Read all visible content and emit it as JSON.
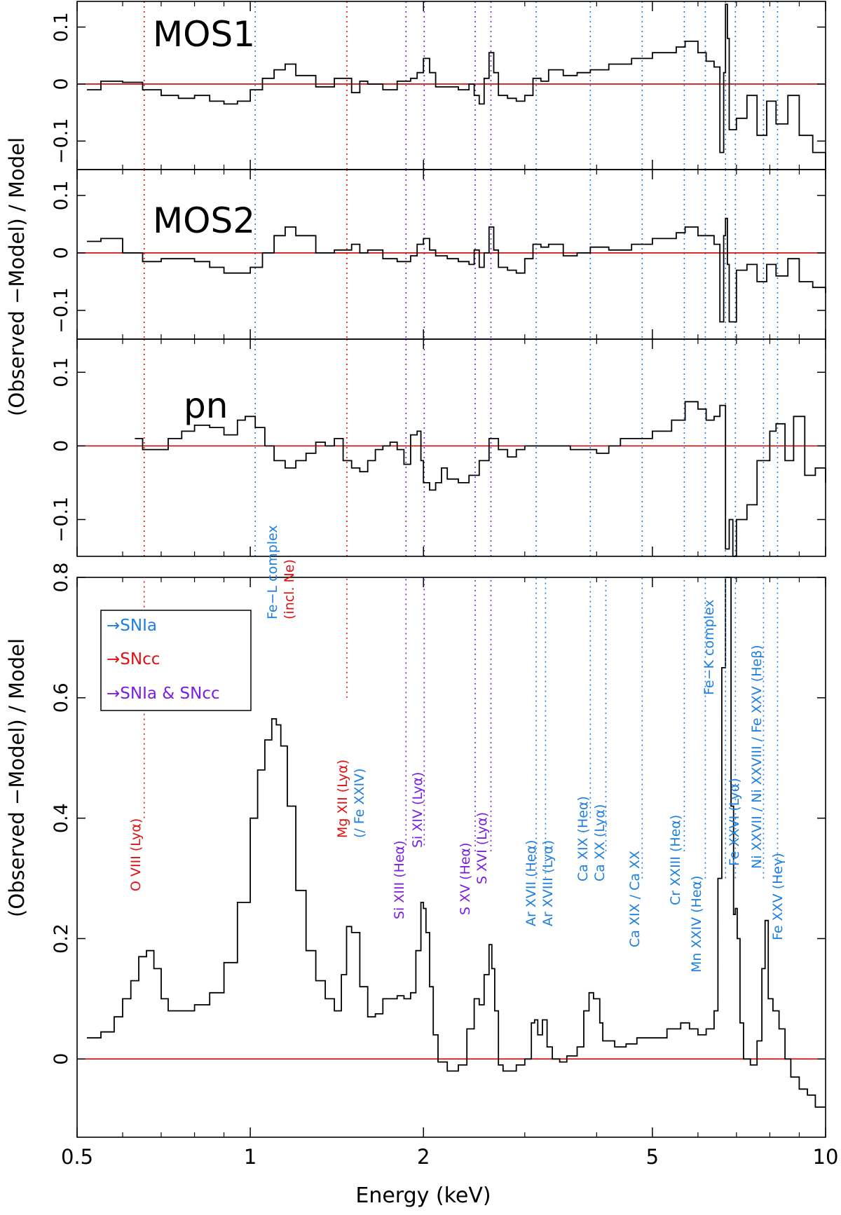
{
  "figure": {
    "xlabel": "Energy (keV)",
    "ylabel_top": "(Observed −Model) / Model",
    "ylabel_bottom": "(Observed −Model) / Model",
    "x_ticks": [
      {
        "v": 0.5,
        "label": "0.5"
      },
      {
        "v": 1,
        "label": "1"
      },
      {
        "v": 2,
        "label": "2"
      },
      {
        "v": 5,
        "label": "5"
      },
      {
        "v": 10,
        "label": "10"
      }
    ],
    "colors": {
      "snia": "#1e7fe0",
      "sncc": "#e01010",
      "both": "#7a1ee0",
      "zero_line": "#cc0000",
      "data": "#000000"
    }
  },
  "legend": [
    {
      "text": "→SNIa",
      "color": "#1e7fe0"
    },
    {
      "text": "→SNcc",
      "color": "#e01010"
    },
    {
      "text": "→SNIa & SNcc",
      "color": "#7a1ee0"
    }
  ],
  "line_labels": [
    {
      "E": 0.654,
      "lines": [
        "O VIII (Lyα)"
      ],
      "color": "#e01010"
    },
    {
      "E": 1.02,
      "lines": [
        "Fe−L complex",
        "(incl. Ne)"
      ],
      "color": "#1e7fe0",
      "color2": "#e01010"
    },
    {
      "E": 1.472,
      "lines": [
        "Mg XII (Lyα)",
        "(/ Fe XXIV)"
      ],
      "color": "#e01010",
      "color2": "#1e7fe0"
    },
    {
      "E": 1.865,
      "lines": [
        "Si XIII (Heα)"
      ],
      "color": "#7a1ee0"
    },
    {
      "E": 2.006,
      "lines": [
        "Si XIV (Lyα)"
      ],
      "color": "#7a1ee0"
    },
    {
      "E": 2.46,
      "lines": [
        "S XV (Heα)"
      ],
      "color": "#7a1ee0"
    },
    {
      "E": 2.62,
      "lines": [
        "S XVI (Lyα)"
      ],
      "color": "#7a1ee0"
    },
    {
      "E": 3.14,
      "lines": [
        "Ar XVII (Heα)",
        "Ar XVIII (Lyα)"
      ],
      "color": "#1e7fe0"
    },
    {
      "E": 3.9,
      "lines": [
        "Ca XIX (Heα)",
        "Ca XX (Lyα)"
      ],
      "color": "#1e7fe0"
    },
    {
      "E": 4.8,
      "lines": [
        "Ca XIX / Ca XX"
      ],
      "color": "#1e7fe0"
    },
    {
      "E": 5.68,
      "lines": [
        "Cr XXIII (Heα)"
      ],
      "color": "#1e7fe0"
    },
    {
      "E": 6.18,
      "lines": [
        "Mn XXIV (Heα)"
      ],
      "color": "#1e7fe0"
    },
    {
      "E": 6.7,
      "lines": [
        "Fe−K complex"
      ],
      "color": "#1e7fe0"
    },
    {
      "E": 6.97,
      "lines": [
        "Fe XXVI (Lyα)"
      ],
      "color": "#1e7fe0"
    },
    {
      "E": 7.8,
      "lines": [
        "Ni XXVII / Ni XXVIII / Fe XXV (Heβ)"
      ],
      "color": "#1e7fe0"
    },
    {
      "E": 8.25,
      "lines": [
        "Fe XXV (Heγ)"
      ],
      "color": "#1e7fe0"
    }
  ],
  "chart_data": [
    {
      "type": "line",
      "title": "MOS1",
      "xscale": "log",
      "xlim": [
        0.5,
        10
      ],
      "ylim": [
        -0.15,
        0.145
      ],
      "yticks": [
        {
          "v": 0.1,
          "label": "0.1"
        },
        {
          "v": 0,
          "label": "0"
        },
        {
          "v": -0.1,
          "label": "−0.1"
        }
      ],
      "series": [
        {
          "x": [
            0.52,
            0.55,
            0.6,
            0.65,
            0.7,
            0.75,
            0.8,
            0.85,
            0.9,
            0.95,
            1.0,
            1.05,
            1.1,
            1.15,
            1.2,
            1.3,
            1.4,
            1.5,
            1.55,
            1.6,
            1.7,
            1.8,
            1.9,
            1.95,
            2.0,
            2.05,
            2.1,
            2.2,
            2.3,
            2.4,
            2.45,
            2.5,
            2.55,
            2.6,
            2.65,
            2.7,
            2.8,
            2.9,
            3.0,
            3.1,
            3.2,
            3.3,
            3.5,
            3.7,
            3.9,
            4.2,
            4.6,
            5.0,
            5.5,
            5.7,
            6.0,
            6.2,
            6.4,
            6.55,
            6.65,
            6.7,
            6.75,
            6.8,
            7.0,
            7.3,
            7.6,
            7.9,
            8.2,
            8.6,
            9.0,
            9.5,
            10.0
          ],
          "y": [
            -0.01,
            0.005,
            0.003,
            -0.01,
            -0.02,
            -0.025,
            -0.02,
            -0.03,
            -0.035,
            -0.03,
            -0.01,
            0.01,
            0.025,
            0.035,
            0.015,
            -0.005,
            0.01,
            -0.015,
            0.005,
            0.0,
            -0.01,
            0.005,
            0.01,
            0.02,
            0.045,
            0.02,
            -0.005,
            -0.005,
            -0.01,
            0.0,
            -0.02,
            -0.035,
            0.01,
            0.055,
            0.02,
            -0.02,
            -0.025,
            -0.03,
            -0.02,
            0.01,
            0.005,
            0.025,
            0.015,
            0.02,
            0.025,
            0.035,
            0.045,
            0.055,
            0.065,
            0.075,
            0.055,
            0.04,
            0.03,
            -0.12,
            0.02,
            0.14,
            0.08,
            -0.08,
            -0.06,
            -0.02,
            -0.09,
            -0.03,
            -0.07,
            -0.02,
            -0.09,
            -0.12,
            -0.15
          ]
        }
      ]
    },
    {
      "type": "line",
      "title": "MOS2",
      "xscale": "log",
      "xlim": [
        0.5,
        10
      ],
      "ylim": [
        -0.15,
        0.145
      ],
      "yticks": [
        {
          "v": 0.1,
          "label": "0.1"
        },
        {
          "v": 0,
          "label": "0"
        },
        {
          "v": -0.1,
          "label": "−0.1"
        }
      ],
      "series": [
        {
          "x": [
            0.52,
            0.55,
            0.6,
            0.65,
            0.7,
            0.75,
            0.8,
            0.85,
            0.9,
            0.95,
            1.0,
            1.05,
            1.1,
            1.15,
            1.2,
            1.3,
            1.4,
            1.5,
            1.55,
            1.6,
            1.7,
            1.8,
            1.9,
            1.95,
            2.0,
            2.05,
            2.1,
            2.2,
            2.3,
            2.4,
            2.45,
            2.5,
            2.55,
            2.6,
            2.65,
            2.7,
            2.8,
            2.9,
            3.0,
            3.1,
            3.2,
            3.3,
            3.5,
            3.7,
            3.9,
            4.2,
            4.6,
            5.0,
            5.5,
            5.7,
            6.0,
            6.2,
            6.4,
            6.55,
            6.65,
            6.7,
            6.75,
            6.8,
            7.0,
            7.3,
            7.6,
            7.9,
            8.2,
            8.6,
            9.0,
            9.5,
            10.0
          ],
          "y": [
            0.02,
            0.025,
            0.0,
            -0.015,
            -0.01,
            -0.01,
            -0.015,
            -0.025,
            -0.035,
            -0.035,
            -0.025,
            0.0,
            0.03,
            0.045,
            0.03,
            0.0,
            0.005,
            0.015,
            0.0,
            0.005,
            -0.01,
            -0.015,
            -0.005,
            0.015,
            0.025,
            0.005,
            -0.005,
            -0.01,
            -0.015,
            -0.02,
            0.005,
            -0.025,
            0.0,
            0.045,
            0.005,
            -0.025,
            -0.03,
            -0.035,
            -0.01,
            0.015,
            0.01,
            0.015,
            -0.005,
            0.0,
            0.01,
            0.005,
            0.015,
            0.025,
            0.035,
            0.045,
            0.03,
            0.03,
            0.015,
            -0.12,
            0.03,
            0.06,
            -0.02,
            -0.12,
            -0.03,
            -0.02,
            -0.05,
            -0.02,
            -0.04,
            -0.01,
            -0.05,
            -0.06,
            -0.07
          ]
        }
      ]
    },
    {
      "type": "line",
      "title": "pn",
      "xscale": "log",
      "xlim": [
        0.5,
        10
      ],
      "ylim": [
        -0.15,
        0.145
      ],
      "yticks": [
        {
          "v": 0.1,
          "label": "0.1"
        },
        {
          "v": 0,
          "label": "0"
        },
        {
          "v": -0.1,
          "label": "−0.1"
        }
      ],
      "series": [
        {
          "x": [
            0.63,
            0.65,
            0.68,
            0.72,
            0.76,
            0.8,
            0.85,
            0.9,
            0.95,
            0.98,
            1.02,
            1.06,
            1.1,
            1.15,
            1.2,
            1.25,
            1.3,
            1.35,
            1.4,
            1.45,
            1.5,
            1.55,
            1.6,
            1.65,
            1.7,
            1.75,
            1.8,
            1.85,
            1.9,
            1.95,
            1.98,
            2.0,
            2.05,
            2.1,
            2.15,
            2.2,
            2.3,
            2.4,
            2.5,
            2.6,
            2.7,
            2.8,
            2.9,
            3.0,
            3.2,
            3.4,
            3.6,
            3.8,
            4.0,
            4.2,
            4.4,
            4.6,
            5.0,
            5.4,
            5.7,
            6.0,
            6.2,
            6.4,
            6.55,
            6.7,
            6.8,
            6.9,
            7.0,
            7.3,
            7.6,
            7.8,
            8.0,
            8.2,
            8.5,
            8.8,
            9.2,
            9.6,
            10.0
          ],
          "y": [
            0.01,
            -0.005,
            -0.005,
            0.01,
            0.02,
            0.028,
            0.025,
            0.015,
            0.035,
            0.04,
            0.025,
            0.0,
            -0.02,
            -0.03,
            -0.02,
            -0.01,
            0.005,
            0.0,
            0.01,
            -0.02,
            -0.03,
            -0.035,
            -0.02,
            -0.005,
            0.0,
            0.005,
            -0.005,
            -0.025,
            0.015,
            0.02,
            -0.02,
            -0.05,
            -0.06,
            -0.05,
            -0.03,
            -0.045,
            -0.05,
            -0.04,
            -0.02,
            0.01,
            -0.005,
            -0.015,
            -0.005,
            0.0,
            0.0,
            0.0,
            -0.005,
            -0.005,
            -0.01,
            0.0,
            0.01,
            0.01,
            0.02,
            0.035,
            0.06,
            0.05,
            0.035,
            0.04,
            0.055,
            -0.14,
            -0.1,
            -0.15,
            -0.1,
            -0.08,
            -0.02,
            -0.02,
            0.02,
            0.03,
            -0.02,
            0.04,
            -0.04,
            -0.03,
            -0.05
          ]
        }
      ]
    },
    {
      "type": "line",
      "title": "",
      "xscale": "log",
      "xlim": [
        0.5,
        10
      ],
      "ylim": [
        -0.13,
        0.8
      ],
      "yticks": [
        {
          "v": 0.8,
          "label": "0.8"
        },
        {
          "v": 0.6,
          "label": "0.6"
        },
        {
          "v": 0.4,
          "label": "0.4"
        },
        {
          "v": 0.2,
          "label": "0.2"
        },
        {
          "v": 0,
          "label": "0"
        }
      ],
      "series": [
        {
          "x": [
            0.52,
            0.55,
            0.58,
            0.6,
            0.62,
            0.64,
            0.66,
            0.68,
            0.7,
            0.72,
            0.76,
            0.8,
            0.85,
            0.9,
            0.95,
            1.0,
            1.03,
            1.06,
            1.09,
            1.11,
            1.13,
            1.16,
            1.2,
            1.25,
            1.3,
            1.35,
            1.4,
            1.44,
            1.47,
            1.5,
            1.55,
            1.6,
            1.65,
            1.7,
            1.75,
            1.8,
            1.85,
            1.9,
            1.94,
            1.98,
            2.0,
            2.02,
            2.05,
            2.08,
            2.12,
            2.2,
            2.3,
            2.38,
            2.45,
            2.5,
            2.55,
            2.6,
            2.63,
            2.66,
            2.7,
            2.75,
            2.8,
            2.9,
            3.0,
            3.08,
            3.12,
            3.16,
            3.22,
            3.28,
            3.35,
            3.45,
            3.55,
            3.7,
            3.8,
            3.88,
            3.95,
            4.05,
            4.1,
            4.3,
            4.5,
            4.7,
            5.0,
            5.3,
            5.6,
            5.8,
            6.0,
            6.2,
            6.4,
            6.5,
            6.6,
            6.7,
            6.75,
            6.85,
            6.92,
            6.97,
            7.02,
            7.1,
            7.2,
            7.4,
            7.6,
            7.75,
            7.85,
            7.95,
            8.1,
            8.3,
            8.5,
            8.7,
            9.0,
            9.3,
            9.6,
            10.0
          ],
          "y": [
            0.035,
            0.045,
            0.07,
            0.1,
            0.13,
            0.17,
            0.18,
            0.15,
            0.1,
            0.08,
            0.08,
            0.09,
            0.11,
            0.16,
            0.26,
            0.4,
            0.48,
            0.53,
            0.565,
            0.555,
            0.52,
            0.42,
            0.28,
            0.18,
            0.13,
            0.1,
            0.08,
            0.14,
            0.22,
            0.21,
            0.12,
            0.07,
            0.075,
            0.1,
            0.1,
            0.105,
            0.1,
            0.11,
            0.18,
            0.26,
            0.25,
            0.21,
            0.12,
            0.04,
            -0.005,
            -0.02,
            -0.01,
            0.05,
            0.1,
            0.09,
            0.14,
            0.19,
            0.15,
            0.08,
            -0.01,
            -0.02,
            -0.02,
            -0.01,
            0.0,
            0.06,
            0.065,
            0.04,
            0.065,
            0.02,
            0.0,
            -0.005,
            0.005,
            0.02,
            0.08,
            0.11,
            0.1,
            0.06,
            0.03,
            0.02,
            0.025,
            0.035,
            0.035,
            0.05,
            0.06,
            0.05,
            0.04,
            0.05,
            0.08,
            0.3,
            0.65,
            0.8,
            0.8,
            0.42,
            0.24,
            0.25,
            0.2,
            0.06,
            0.0,
            -0.01,
            0.03,
            0.15,
            0.23,
            0.1,
            0.08,
            0.05,
            0.0,
            -0.03,
            -0.05,
            -0.06,
            -0.08,
            -0.08
          ]
        }
      ]
    }
  ]
}
